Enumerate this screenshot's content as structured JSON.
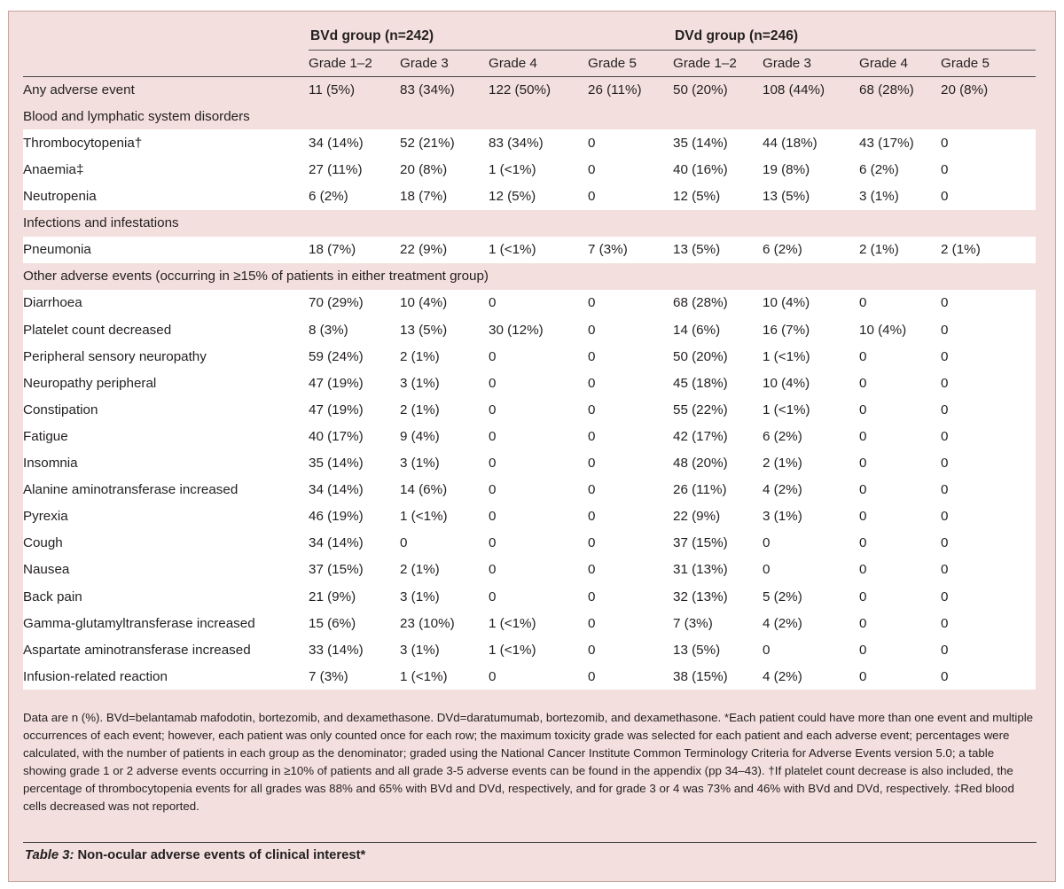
{
  "groups": [
    {
      "label": "BVd group (n=242)"
    },
    {
      "label": "DVd group (n=246)"
    }
  ],
  "grades": [
    "Grade 1–2",
    "Grade 3",
    "Grade 4",
    "Grade 5",
    "Grade 1–2",
    "Grade 3",
    "Grade 4",
    "Grade 5"
  ],
  "rows": [
    {
      "kind": "main",
      "label": "Any adverse event",
      "values": [
        "11 (5%)",
        "83 (34%)",
        "122 (50%)",
        "26 (11%)",
        "50 (20%)",
        "108 (44%)",
        "68 (28%)",
        "20 (8%)"
      ]
    },
    {
      "kind": "section",
      "label": "Blood and lymphatic system disorders"
    },
    {
      "kind": "sub",
      "label": "Thrombocytopenia†",
      "values": [
        "34 (14%)",
        "52 (21%)",
        "83 (34%)",
        "0",
        "35 (14%)",
        "44 (18%)",
        "43 (17%)",
        "0"
      ]
    },
    {
      "kind": "sub",
      "label": "Anaemia‡",
      "values": [
        "27 (11%)",
        "20 (8%)",
        "1 (<1%)",
        "0",
        "40 (16%)",
        "19 (8%)",
        "6 (2%)",
        "0"
      ]
    },
    {
      "kind": "sub",
      "label": "Neutropenia",
      "values": [
        "6 (2%)",
        "18 (7%)",
        "12 (5%)",
        "0",
        "12 (5%)",
        "13 (5%)",
        "3 (1%)",
        "0"
      ]
    },
    {
      "kind": "section",
      "label": "Infections and infestations"
    },
    {
      "kind": "sub",
      "label": "Pneumonia",
      "values": [
        "18 (7%)",
        "22 (9%)",
        "1 (<1%)",
        "7 (3%)",
        "13 (5%)",
        "6 (2%)",
        "2 (1%)",
        "2 (1%)"
      ]
    },
    {
      "kind": "section",
      "label": "Other adverse events (occurring in ≥15% of patients in either treatment group)"
    },
    {
      "kind": "sub",
      "label": "Diarrhoea",
      "values": [
        "70 (29%)",
        "10 (4%)",
        "0",
        "0",
        "68 (28%)",
        "10 (4%)",
        "0",
        "0"
      ]
    },
    {
      "kind": "sub",
      "label": "Platelet count decreased",
      "values": [
        "8 (3%)",
        "13 (5%)",
        "30 (12%)",
        "0",
        "14 (6%)",
        "16 (7%)",
        "10 (4%)",
        "0"
      ]
    },
    {
      "kind": "sub",
      "label": "Peripheral sensory neuropathy",
      "values": [
        "59 (24%)",
        "2 (1%)",
        "0",
        "0",
        "50 (20%)",
        "1 (<1%)",
        "0",
        "0"
      ]
    },
    {
      "kind": "sub",
      "label": "Neuropathy peripheral",
      "values": [
        "47 (19%)",
        "3 (1%)",
        "0",
        "0",
        "45 (18%)",
        "10 (4%)",
        "0",
        "0"
      ]
    },
    {
      "kind": "sub",
      "label": "Constipation",
      "values": [
        "47 (19%)",
        "2 (1%)",
        "0",
        "0",
        "55 (22%)",
        "1 (<1%)",
        "0",
        "0"
      ]
    },
    {
      "kind": "sub",
      "label": "Fatigue",
      "values": [
        "40 (17%)",
        "9 (4%)",
        "0",
        "0",
        "42 (17%)",
        "6 (2%)",
        "0",
        "0"
      ]
    },
    {
      "kind": "sub",
      "label": "Insomnia",
      "values": [
        "35 (14%)",
        "3 (1%)",
        "0",
        "0",
        "48 (20%)",
        "2 (1%)",
        "0",
        "0"
      ]
    },
    {
      "kind": "sub",
      "label": "Alanine aminotransferase increased",
      "values": [
        "34 (14%)",
        "14 (6%)",
        "0",
        "0",
        "26 (11%)",
        "4 (2%)",
        "0",
        "0"
      ]
    },
    {
      "kind": "sub",
      "label": "Pyrexia",
      "values": [
        "46 (19%)",
        "1 (<1%)",
        "0",
        "0",
        "22 (9%)",
        "3 (1%)",
        "0",
        "0"
      ]
    },
    {
      "kind": "sub",
      "label": "Cough",
      "values": [
        "34 (14%)",
        "0",
        "0",
        "0",
        "37 (15%)",
        "0",
        "0",
        "0"
      ]
    },
    {
      "kind": "sub",
      "label": "Nausea",
      "values": [
        "37 (15%)",
        "2 (1%)",
        "0",
        "0",
        "31 (13%)",
        "0",
        "0",
        "0"
      ]
    },
    {
      "kind": "sub",
      "label": "Back pain",
      "values": [
        "21 (9%)",
        "3 (1%)",
        "0",
        "0",
        "32 (13%)",
        "5 (2%)",
        "0",
        "0"
      ]
    },
    {
      "kind": "sub",
      "label": "Gamma-glutamyltransferase increased",
      "values": [
        "15 (6%)",
        "23 (10%)",
        "1 (<1%)",
        "0",
        "7 (3%)",
        "4 (2%)",
        "0",
        "0"
      ]
    },
    {
      "kind": "sub",
      "label": "Aspartate aminotransferase increased",
      "values": [
        "33 (14%)",
        "3 (1%)",
        "1 (<1%)",
        "0",
        "13 (5%)",
        "0",
        "0",
        "0"
      ]
    },
    {
      "kind": "sub",
      "label": "Infusion-related reaction",
      "values": [
        "7 (3%)",
        "1 (<1%)",
        "0",
        "0",
        "38 (15%)",
        "4 (2%)",
        "0",
        "0"
      ]
    }
  ],
  "footnote": "Data are n (%). BVd=belantamab mafodotin, bortezomib, and dexamethasone. DVd=daratumumab, bortezomib, and dexamethasone. *Each patient could have more than one event and multiple occurrences of each event; however, each patient was only counted once for each row; the maximum toxicity grade was selected for each patient and each adverse event; percentages were calculated, with the number of patients in each group as the denominator; graded using the National Cancer Institute Common Terminology Criteria for Adverse Events version 5.0; a table showing grade 1 or 2 adverse events occurring in ≥10% of patients and all grade 3-5 adverse events can be found in the appendix (pp 34–43). †If platelet count decrease is also included, the percentage of thrombocytopenia events for all grades was 88% and 65% with BVd and DVd, respectively, and for grade 3 or 4 was 73% and 46% with BVd and DVd, respectively. ‡Red blood cells decreased was not reported.",
  "caption": {
    "label": "Table 3:",
    "text": " Non-ocular adverse events of clinical interest*"
  },
  "colors": {
    "background": "#f3e0de",
    "white_band": "#ffffff",
    "text": "#231f20"
  }
}
